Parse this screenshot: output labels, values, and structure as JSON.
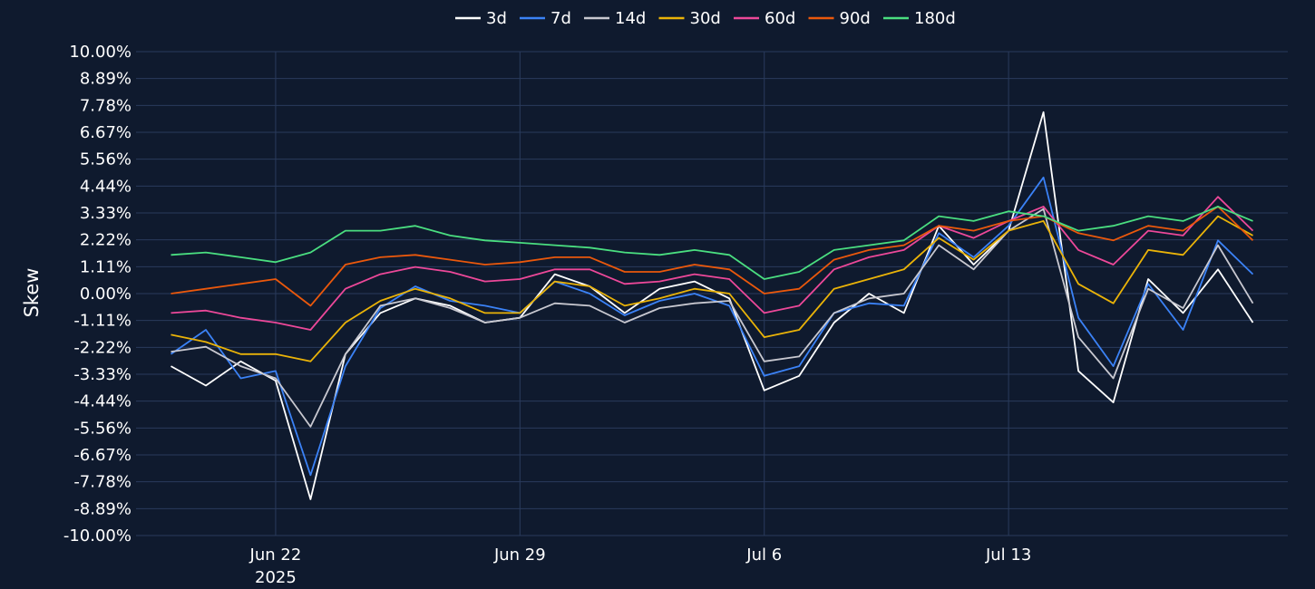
{
  "chart_data": {
    "type": "line",
    "ylabel": "Skew",
    "xlabel": "",
    "y_unit": "%",
    "ylim": [
      -10.0,
      10.0
    ],
    "y_ticks": [
      "10.00%",
      "8.89%",
      "7.78%",
      "6.67%",
      "5.56%",
      "4.44%",
      "3.33%",
      "2.22%",
      "1.11%",
      "0.00%",
      "-1.11%",
      "-2.22%",
      "-3.33%",
      "-4.44%",
      "-5.56%",
      "-6.67%",
      "-7.78%",
      "-8.89%",
      "-10.00%"
    ],
    "xlim": [
      "2025-06-18",
      "2025-07-21"
    ],
    "x_ticks": [
      {
        "date": "2025-06-22",
        "label": "Jun 22",
        "sublabel": "2025"
      },
      {
        "date": "2025-06-29",
        "label": "Jun 29",
        "sublabel": ""
      },
      {
        "date": "2025-07-06",
        "label": "Jul 6",
        "sublabel": ""
      },
      {
        "date": "2025-07-13",
        "label": "Jul 13",
        "sublabel": ""
      }
    ],
    "grid": true,
    "legend_position": "top-center",
    "x": [
      "2025-06-19",
      "2025-06-20",
      "2025-06-21",
      "2025-06-22",
      "2025-06-23",
      "2025-06-24",
      "2025-06-25",
      "2025-06-26",
      "2025-06-27",
      "2025-06-28",
      "2025-06-29",
      "2025-06-30",
      "2025-07-01",
      "2025-07-02",
      "2025-07-03",
      "2025-07-04",
      "2025-07-05",
      "2025-07-06",
      "2025-07-07",
      "2025-07-08",
      "2025-07-09",
      "2025-07-10",
      "2025-07-11",
      "2025-07-12",
      "2025-07-13",
      "2025-07-14",
      "2025-07-15",
      "2025-07-16",
      "2025-07-17",
      "2025-07-18",
      "2025-07-19",
      "2025-07-20"
    ],
    "series": [
      {
        "name": "3d",
        "color": "#ffffff",
        "values": [
          -3.0,
          -3.8,
          -2.8,
          -3.6,
          -8.5,
          -2.5,
          -0.8,
          -0.2,
          -0.5,
          -1.2,
          -1.0,
          0.8,
          0.3,
          -0.8,
          0.2,
          0.5,
          -0.2,
          -4.0,
          -3.4,
          -1.2,
          0.0,
          -0.8,
          2.8,
          1.2,
          2.6,
          7.5,
          -3.2,
          -4.5,
          0.6,
          -0.8,
          1.0,
          -1.2
        ]
      },
      {
        "name": "7d",
        "color": "#3b82f6",
        "values": [
          -2.5,
          -1.5,
          -3.5,
          -3.2,
          -7.5,
          -3.0,
          -0.6,
          0.3,
          -0.3,
          -0.5,
          -0.8,
          0.5,
          0.0,
          -0.9,
          -0.3,
          0.0,
          -0.5,
          -3.4,
          -3.0,
          -0.8,
          -0.4,
          -0.5,
          2.5,
          1.5,
          2.8,
          4.8,
          -1.0,
          -3.0,
          0.4,
          -1.5,
          2.2,
          0.8
        ]
      },
      {
        "name": "14d",
        "color": "#c8c8d0",
        "values": [
          -2.4,
          -2.2,
          -3.0,
          -3.5,
          -5.5,
          -2.5,
          -0.5,
          -0.2,
          -0.6,
          -1.2,
          -1.0,
          -0.4,
          -0.5,
          -1.2,
          -0.6,
          -0.4,
          -0.3,
          -2.8,
          -2.6,
          -0.8,
          -0.2,
          0.0,
          2.0,
          1.0,
          2.6,
          3.5,
          -1.8,
          -3.5,
          0.2,
          -0.6,
          2.0,
          -0.4
        ]
      },
      {
        "name": "30d",
        "color": "#eab308",
        "values": [
          -1.7,
          -2.0,
          -2.5,
          -2.5,
          -2.8,
          -1.2,
          -0.3,
          0.2,
          -0.2,
          -0.8,
          -0.8,
          0.5,
          0.3,
          -0.5,
          -0.2,
          0.2,
          0.0,
          -1.8,
          -1.5,
          0.2,
          0.6,
          1.0,
          2.3,
          1.4,
          2.6,
          3.0,
          0.4,
          -0.4,
          1.8,
          1.6,
          3.2,
          2.4
        ]
      },
      {
        "name": "60d",
        "color": "#ec4899",
        "values": [
          -0.8,
          -0.7,
          -1.0,
          -1.2,
          -1.5,
          0.2,
          0.8,
          1.1,
          0.9,
          0.5,
          0.6,
          1.0,
          1.0,
          0.4,
          0.5,
          0.8,
          0.6,
          -0.8,
          -0.5,
          1.0,
          1.5,
          1.8,
          2.8,
          2.3,
          3.0,
          3.6,
          1.8,
          1.2,
          2.6,
          2.4,
          4.0,
          2.6
        ]
      },
      {
        "name": "90d",
        "color": "#ea580c",
        "values": [
          0.0,
          0.2,
          0.4,
          0.6,
          -0.5,
          1.2,
          1.5,
          1.6,
          1.4,
          1.2,
          1.3,
          1.5,
          1.5,
          0.9,
          0.9,
          1.2,
          1.0,
          0.0,
          0.2,
          1.4,
          1.8,
          2.0,
          2.8,
          2.6,
          3.0,
          3.2,
          2.5,
          2.2,
          2.8,
          2.6,
          3.6,
          2.2
        ]
      },
      {
        "name": "180d",
        "color": "#4ade80",
        "values": [
          1.6,
          1.7,
          1.5,
          1.3,
          1.7,
          2.6,
          2.6,
          2.8,
          2.4,
          2.2,
          2.1,
          2.0,
          1.9,
          1.7,
          1.6,
          1.8,
          1.6,
          0.6,
          0.9,
          1.8,
          2.0,
          2.2,
          3.2,
          3.0,
          3.4,
          3.2,
          2.6,
          2.8,
          3.2,
          3.0,
          3.6,
          3.0
        ]
      }
    ]
  }
}
